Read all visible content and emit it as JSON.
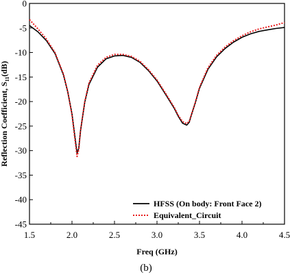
{
  "chart_data": {
    "type": "line",
    "xlabel": "Freq (GHz)",
    "ylabel": "Reflection Coefficient, S",
    "ylabel_sub": "11",
    "ylabel_unit": "(dB)",
    "xlim": [
      1.5,
      4.5
    ],
    "ylim": [
      -45,
      0
    ],
    "xticks": [
      1.5,
      2.0,
      2.5,
      3.0,
      3.5,
      4.0,
      4.5
    ],
    "xtick_labels": [
      "1.5",
      "2.0",
      "2.5",
      "3.0",
      "3.5",
      "4.0",
      "4.5"
    ],
    "yticks": [
      0,
      -5,
      -10,
      -15,
      -20,
      -25,
      -30,
      -35,
      -40,
      -45
    ],
    "ytick_labels": [
      "0",
      "-5",
      "-10",
      "-15",
      "-20",
      "-25",
      "-30",
      "-35",
      "-40",
      "-45"
    ],
    "grid": false,
    "legend_position": "bottom-right",
    "caption": "(b)",
    "series": [
      {
        "name": "HFSS (On body: Front Face 2)",
        "color": "#000000",
        "style": "solid",
        "x": [
          1.5,
          1.6,
          1.7,
          1.8,
          1.9,
          1.95,
          2.0,
          2.03,
          2.06,
          2.08,
          2.1,
          2.15,
          2.2,
          2.3,
          2.4,
          2.5,
          2.6,
          2.7,
          2.8,
          2.9,
          3.0,
          3.1,
          3.2,
          3.25,
          3.3,
          3.35,
          3.38,
          3.4,
          3.45,
          3.5,
          3.6,
          3.7,
          3.8,
          3.9,
          4.0,
          4.1,
          4.2,
          4.3,
          4.4,
          4.5
        ],
        "y": [
          -4.5,
          -5.8,
          -7.6,
          -10.2,
          -14.6,
          -18.0,
          -22.5,
          -26.5,
          -30.5,
          -29.5,
          -26.0,
          -20.2,
          -16.5,
          -13.0,
          -11.3,
          -10.7,
          -10.6,
          -11.0,
          -12.0,
          -13.7,
          -15.8,
          -18.5,
          -21.3,
          -23.0,
          -24.4,
          -24.8,
          -24.2,
          -23.0,
          -20.3,
          -17.3,
          -13.4,
          -10.9,
          -9.2,
          -7.9,
          -6.9,
          -6.2,
          -5.7,
          -5.4,
          -5.1,
          -4.9
        ]
      },
      {
        "name": "Equivalent_Circuit",
        "color": "#e8191a",
        "style": "dotted",
        "x": [
          1.5,
          1.6,
          1.7,
          1.8,
          1.9,
          1.95,
          2.0,
          2.03,
          2.06,
          2.08,
          2.1,
          2.15,
          2.2,
          2.3,
          2.4,
          2.5,
          2.6,
          2.7,
          2.8,
          2.9,
          3.0,
          3.1,
          3.2,
          3.25,
          3.3,
          3.35,
          3.38,
          3.4,
          3.45,
          3.5,
          3.6,
          3.7,
          3.8,
          3.9,
          4.0,
          4.1,
          4.2,
          4.3,
          4.4,
          4.5
        ],
        "y": [
          -3.3,
          -5.2,
          -7.3,
          -10.0,
          -14.4,
          -18.0,
          -22.7,
          -27.0,
          -31.2,
          -29.8,
          -26.0,
          -20.0,
          -16.2,
          -12.6,
          -11.0,
          -10.4,
          -10.4,
          -10.8,
          -11.8,
          -13.5,
          -15.6,
          -18.3,
          -21.1,
          -22.8,
          -24.1,
          -24.5,
          -24.0,
          -22.9,
          -20.2,
          -17.1,
          -13.1,
          -10.6,
          -8.9,
          -7.6,
          -6.6,
          -5.8,
          -5.2,
          -4.8,
          -4.4,
          -3.9
        ]
      }
    ]
  }
}
